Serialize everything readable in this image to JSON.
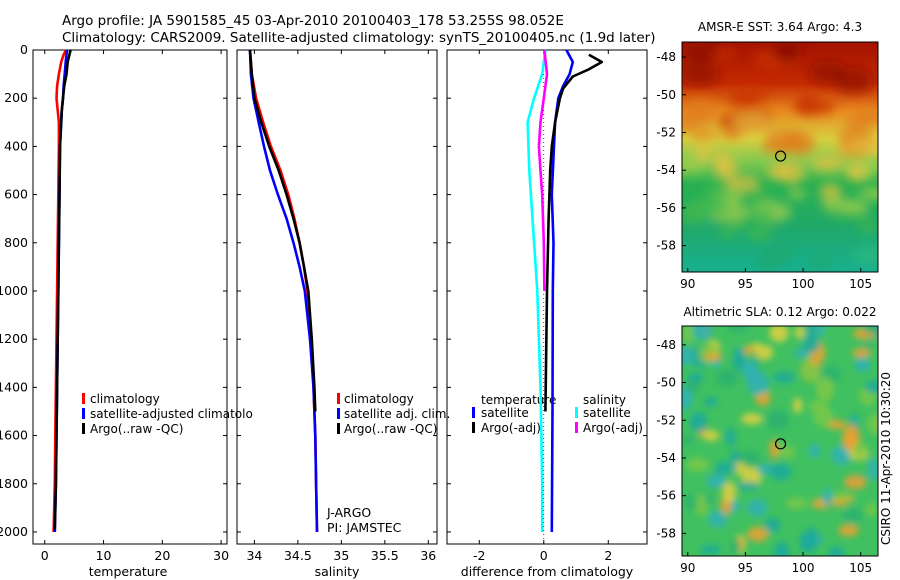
{
  "header": {
    "line1": "Argo profile: JA 5901585_45 03-Apr-2010 20100403_178 53.255S 98.052E",
    "line2": "Climatology: CARS2009. Satellite-adjusted climatology: synTS_20100405.nc (1.9d later)"
  },
  "side_label": "CSIRO 11-Apr-2010 10:30:20",
  "colors": {
    "red": "#ff0000",
    "blue": "#0000ff",
    "black": "#000000",
    "cyan": "#00ffff",
    "magenta": "#ff00ff"
  },
  "chart_data": [
    {
      "type": "line",
      "id": "temperature",
      "xlabel": "temperature",
      "xlim": [
        -2,
        31
      ],
      "ylim": [
        0,
        2050
      ],
      "xticks": [
        0,
        10,
        20,
        30
      ],
      "yticks": [
        0,
        200,
        400,
        600,
        800,
        1000,
        1200,
        1400,
        1600,
        1800,
        2000
      ],
      "legend": [
        "climatology",
        "satellite-adjusted climatolo",
        "Argo(..raw -QC)"
      ],
      "series": [
        {
          "name": "climatology",
          "color": "red",
          "points": [
            [
              3.6,
              0
            ],
            [
              3.2,
              20
            ],
            [
              2.8,
              50
            ],
            [
              2.4,
              100
            ],
            [
              2.1,
              150
            ],
            [
              2.0,
              200
            ],
            [
              2.2,
              250
            ],
            [
              2.4,
              300
            ],
            [
              2.4,
              400
            ],
            [
              2.3,
              600
            ],
            [
              2.2,
              800
            ],
            [
              2.1,
              1000
            ],
            [
              2.0,
              1200
            ],
            [
              1.9,
              1400
            ],
            [
              1.8,
              1600
            ],
            [
              1.7,
              1800
            ],
            [
              1.5,
              2000
            ]
          ]
        },
        {
          "name": "satellite-adjusted climatology",
          "color": "blue",
          "points": [
            [
              3.8,
              0
            ],
            [
              3.6,
              40
            ],
            [
              3.4,
              100
            ],
            [
              3.2,
              150
            ],
            [
              3.1,
              200
            ],
            [
              2.9,
              250
            ],
            [
              2.8,
              300
            ],
            [
              2.6,
              400
            ],
            [
              2.5,
              600
            ],
            [
              2.4,
              800
            ],
            [
              2.3,
              1000
            ],
            [
              2.2,
              1200
            ],
            [
              2.1,
              1400
            ],
            [
              2.0,
              1600
            ],
            [
              1.9,
              1800
            ],
            [
              1.7,
              2000
            ]
          ]
        },
        {
          "name": "Argo(..raw -QC)",
          "color": "black",
          "points": [
            [
              4.4,
              0
            ],
            [
              4.2,
              20
            ],
            [
              3.9,
              50
            ],
            [
              3.7,
              100
            ],
            [
              3.3,
              150
            ],
            [
              3.1,
              200
            ],
            [
              2.9,
              250
            ],
            [
              2.8,
              300
            ],
            [
              2.6,
              400
            ],
            [
              2.5,
              600
            ],
            [
              2.4,
              800
            ],
            [
              2.3,
              1000
            ],
            [
              2.2,
              1200
            ],
            [
              2.1,
              1400
            ],
            [
              2.0,
              1600
            ],
            [
              1.9,
              1800
            ],
            [
              1.7,
              1990
            ]
          ]
        }
      ]
    },
    {
      "type": "line",
      "id": "salinity",
      "xlabel": "salinity",
      "xlim": [
        33.8,
        36.1
      ],
      "ylim": [
        0,
        2050
      ],
      "xticks": [
        34,
        34.5,
        35,
        35.5,
        36
      ],
      "legend": [
        "climatology",
        "satellite adj. clim.",
        "Argo(..raw -QC)"
      ],
      "annotation": [
        "J-ARGO",
        "PI: JAMSTEC"
      ],
      "series": [
        {
          "name": "climatology",
          "color": "red",
          "points": [
            [
              33.95,
              0
            ],
            [
              33.97,
              100
            ],
            [
              34.02,
              200
            ],
            [
              34.1,
              300
            ],
            [
              34.19,
              400
            ],
            [
              34.3,
              500
            ],
            [
              34.39,
              600
            ],
            [
              34.46,
              700
            ],
            [
              34.52,
              800
            ],
            [
              34.57,
              900
            ],
            [
              34.61,
              1000
            ],
            [
              34.65,
              1200
            ],
            [
              34.68,
              1400
            ],
            [
              34.7,
              1600
            ],
            [
              34.71,
              1800
            ],
            [
              34.72,
              2000
            ]
          ]
        },
        {
          "name": "satellite adj. clim.",
          "color": "blue",
          "points": [
            [
              33.95,
              0
            ],
            [
              33.96,
              100
            ],
            [
              33.99,
              200
            ],
            [
              34.05,
              300
            ],
            [
              34.11,
              400
            ],
            [
              34.18,
              500
            ],
            [
              34.27,
              600
            ],
            [
              34.37,
              700
            ],
            [
              34.45,
              800
            ],
            [
              34.52,
              900
            ],
            [
              34.58,
              1000
            ],
            [
              34.64,
              1200
            ],
            [
              34.68,
              1400
            ],
            [
              34.7,
              1600
            ],
            [
              34.71,
              1800
            ],
            [
              34.72,
              2000
            ]
          ]
        },
        {
          "name": "Argo(..raw -QC)",
          "color": "black",
          "points": [
            [
              33.95,
              0
            ],
            [
              33.97,
              100
            ],
            [
              34.0,
              200
            ],
            [
              34.08,
              300
            ],
            [
              34.17,
              400
            ],
            [
              34.28,
              500
            ],
            [
              34.37,
              600
            ],
            [
              34.45,
              700
            ],
            [
              34.52,
              800
            ],
            [
              34.57,
              900
            ],
            [
              34.62,
              1000
            ],
            [
              34.66,
              1200
            ],
            [
              34.69,
              1400
            ],
            [
              34.7,
              1500
            ]
          ]
        }
      ]
    },
    {
      "type": "line",
      "id": "difference",
      "xlabel": "difference from climatology",
      "xlim": [
        -3,
        3.2
      ],
      "ylim": [
        0,
        2050
      ],
      "xticks": [
        -2,
        0,
        2
      ],
      "legend_left": {
        "title": "temperature",
        "items": [
          "satellite",
          "Argo(-adj)"
        ]
      },
      "legend_right": {
        "title": "salinity",
        "items": [
          "satellite",
          "Argo(-adj)"
        ]
      },
      "series": [
        {
          "name": "temperature satellite",
          "color": "blue",
          "points": [
            [
              0.7,
              0
            ],
            [
              0.9,
              50
            ],
            [
              0.8,
              100
            ],
            [
              0.6,
              150
            ],
            [
              0.45,
              200
            ],
            [
              0.35,
              300
            ],
            [
              0.25,
              600
            ],
            [
              0.3,
              800
            ],
            [
              0.28,
              1000
            ],
            [
              0.27,
              1500
            ],
            [
              0.25,
              2000
            ]
          ]
        },
        {
          "name": "temperature Argo(-adj)",
          "color": "black",
          "points": [
            [
              1.4,
              20
            ],
            [
              1.8,
              50
            ],
            [
              1.4,
              80
            ],
            [
              0.9,
              110
            ],
            [
              0.6,
              160
            ],
            [
              0.5,
              200
            ],
            [
              0.35,
              300
            ],
            [
              0.25,
              400
            ],
            [
              0.2,
              500
            ],
            [
              0.15,
              700
            ],
            [
              0.1,
              1000
            ],
            [
              0.05,
              1500
            ]
          ]
        },
        {
          "name": "salinity satellite",
          "color": "cyan",
          "points": [
            [
              0.05,
              0
            ],
            [
              -0.05,
              100
            ],
            [
              -0.3,
              200
            ],
            [
              -0.5,
              300
            ],
            [
              -0.45,
              500
            ],
            [
              -0.35,
              700
            ],
            [
              -0.2,
              1000
            ],
            [
              -0.1,
              1400
            ],
            [
              -0.05,
              1800
            ],
            [
              -0.05,
              2000
            ]
          ]
        },
        {
          "name": "salinity Argo(-adj)",
          "color": "magenta",
          "points": [
            [
              0.02,
              0
            ],
            [
              0.1,
              100
            ],
            [
              0.0,
              200
            ],
            [
              -0.1,
              300
            ],
            [
              -0.15,
              400
            ],
            [
              -0.1,
              500
            ],
            [
              -0.05,
              600
            ],
            [
              0.0,
              800
            ],
            [
              0.02,
              1000
            ]
          ]
        }
      ]
    },
    {
      "type": "heatmap",
      "id": "sst",
      "title": "AMSR-E SST: 3.64 Argo: 4.3",
      "xticks": [
        90,
        95,
        100,
        105
      ],
      "yticks": [
        -48,
        -50,
        -52,
        -54,
        -56,
        -58
      ],
      "xlim": [
        89.5,
        106.5
      ],
      "ylim": [
        -59.4,
        -47.2
      ],
      "marker": {
        "lon": 98.05,
        "lat": -53.25
      }
    },
    {
      "type": "heatmap",
      "id": "sla",
      "title": "Altimetric SLA: 0.12 Argo: 0.022",
      "xticks": [
        90,
        95,
        100,
        105
      ],
      "yticks": [
        -48,
        -50,
        -52,
        -54,
        -56,
        -58
      ],
      "xlim": [
        89.5,
        106.5
      ],
      "ylim": [
        -59.2,
        -47.0
      ],
      "marker": {
        "lon": 98.05,
        "lat": -53.25
      }
    }
  ]
}
